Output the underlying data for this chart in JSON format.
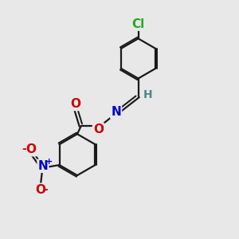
{
  "bg_color": "#e8e8e8",
  "bond_color": "#1a1a1a",
  "bond_width": 1.6,
  "atom_colors": {
    "N": "#0000cc",
    "O": "#cc0000",
    "Cl": "#22aa22",
    "H": "#4a8a8a",
    "C": "#1a1a1a",
    "Nnitro": "#0000cc",
    "Onitro": "#cc0000"
  },
  "figsize": [
    3.0,
    3.0
  ],
  "dpi": 100
}
